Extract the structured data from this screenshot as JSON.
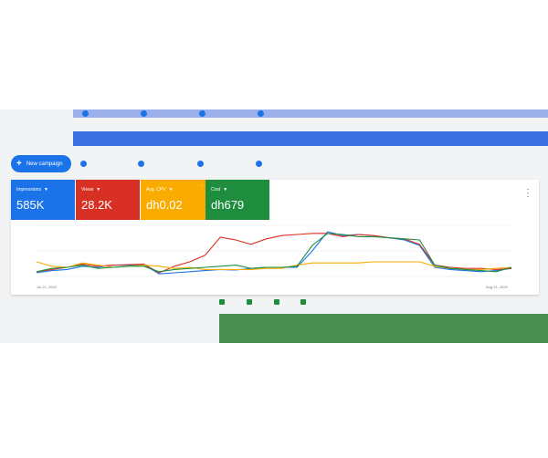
{
  "toolbar": {
    "new_campaign_label": "New campaign"
  },
  "metrics": [
    {
      "label": "Impressions",
      "value": "585K",
      "color": "#1a73e8"
    },
    {
      "label": "Views",
      "value": "28.2K",
      "color": "#d93025"
    },
    {
      "label": "Avg. CPV",
      "value": "dh0.02",
      "color": "#f9ab00"
    },
    {
      "label": "Cost",
      "value": "dh679",
      "color": "#1e8e3e"
    }
  ],
  "chart": {
    "start_date": "Jul 21, 2020",
    "end_date": "Aug 21, 2020"
  },
  "chart_data": {
    "type": "line",
    "x": [
      1,
      2,
      3,
      4,
      5,
      6,
      7,
      8,
      9,
      10,
      11,
      12,
      13,
      14,
      15,
      16,
      17,
      18,
      19,
      20,
      21,
      22,
      23,
      24,
      25,
      26,
      27,
      28,
      29,
      30,
      31,
      32
    ],
    "ylim": [
      0,
      100
    ],
    "series": [
      {
        "color": "#1a73e8",
        "values": [
          10,
          14,
          16,
          22,
          20,
          24,
          24,
          25,
          8,
          10,
          12,
          14,
          16,
          15,
          18,
          20,
          20,
          20,
          50,
          85,
          78,
          80,
          78,
          74,
          70,
          60,
          20,
          16,
          14,
          12,
          14,
          18
        ]
      },
      {
        "color": "#d93025",
        "values": [
          12,
          16,
          20,
          26,
          22,
          24,
          25,
          26,
          10,
          22,
          30,
          42,
          75,
          70,
          62,
          72,
          78,
          80,
          82,
          82,
          76,
          80,
          78,
          74,
          72,
          62,
          24,
          20,
          18,
          18,
          16,
          18
        ]
      },
      {
        "color": "#f9ab00",
        "values": [
          30,
          22,
          20,
          28,
          24,
          20,
          22,
          24,
          22,
          18,
          20,
          16,
          16,
          16,
          16,
          18,
          18,
          24,
          28,
          28,
          28,
          28,
          30,
          30,
          30,
          30,
          22,
          18,
          16,
          16,
          18,
          20
        ]
      },
      {
        "color": "#1e8e3e",
        "values": [
          12,
          18,
          20,
          24,
          18,
          20,
          22,
          22,
          12,
          16,
          18,
          20,
          22,
          24,
          18,
          20,
          20,
          22,
          60,
          82,
          80,
          76,
          76,
          74,
          72,
          70,
          24,
          18,
          16,
          14,
          12,
          20
        ]
      }
    ]
  },
  "icons": {
    "more": "more-vert-icon",
    "caret": "dropdown-caret-icon",
    "plus": "plus-icon"
  }
}
